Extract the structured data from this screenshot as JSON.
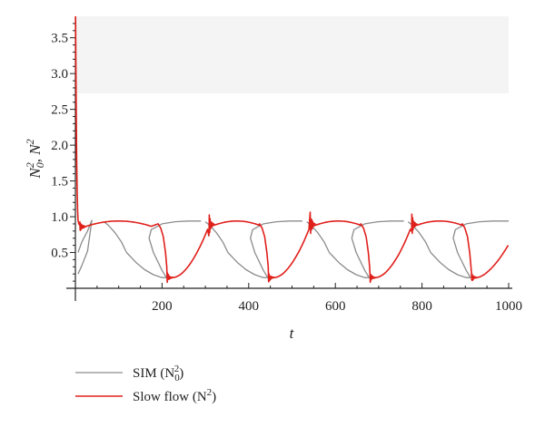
{
  "chart_data": {
    "type": "line",
    "xlabel": "t",
    "ylabel_parts": [
      "N",
      "0",
      "2",
      ", N",
      "2"
    ],
    "xlim": [
      0,
      1000
    ],
    "ylim": [
      0,
      3.8
    ],
    "xticks": [
      200,
      400,
      600,
      800,
      1000
    ],
    "yticks": [
      0.5,
      1.0,
      1.5,
      2.0,
      2.5,
      3.0,
      3.5
    ],
    "ytick_labels": [
      "0.5",
      "1.0",
      "1.5",
      "2.0",
      "2.5",
      "3.0",
      "3.5"
    ],
    "xtick_labels": [
      "200",
      "400",
      "600",
      "800",
      "1000"
    ],
    "grid": false,
    "legend_position": "bottom-left",
    "series": [
      {
        "name_parts": [
          "SIM (N",
          "0",
          "2",
          ")"
        ],
        "color": "#8c8c8c",
        "kind": "slow-manifold-branches",
        "branches": [
          {
            "x": [
              6,
              15,
              28,
              38,
              38,
              28,
              15,
              6
            ],
            "y": [
              0.2,
              0.32,
              0.52,
              0.95,
              0.95,
              0.8,
              0.65,
              0.5
            ]
          },
          {
            "x": [
              118,
              140,
              160,
              180,
              200,
              210,
              200,
              180,
              170,
              175,
              200,
              230,
              260,
              290
            ],
            "y": [
              0.5,
              0.36,
              0.26,
              0.19,
              0.15,
              0.15,
              0.25,
              0.5,
              0.7,
              0.82,
              0.9,
              0.93,
              0.94,
              0.94
            ]
          },
          {
            "x": [
              352,
              374,
              394,
              414,
              434,
              444,
              434,
              414,
              404,
              409,
              434,
              464,
              494,
              524
            ],
            "y": [
              0.5,
              0.36,
              0.26,
              0.19,
              0.15,
              0.15,
              0.25,
              0.5,
              0.7,
              0.82,
              0.9,
              0.93,
              0.94,
              0.94
            ]
          },
          {
            "x": [
              586,
              608,
              628,
              648,
              668,
              678,
              668,
              648,
              638,
              643,
              668,
              698,
              728,
              758
            ],
            "y": [
              0.5,
              0.36,
              0.26,
              0.19,
              0.15,
              0.15,
              0.25,
              0.5,
              0.7,
              0.82,
              0.9,
              0.93,
              0.94,
              0.94
            ]
          },
          {
            "x": [
              820,
              842,
              862,
              882,
              902,
              912,
              902,
              882,
              872,
              877,
              902,
              932,
              962,
              992,
              1000
            ],
            "y": [
              0.5,
              0.36,
              0.26,
              0.19,
              0.15,
              0.15,
              0.25,
              0.5,
              0.7,
              0.82,
              0.9,
              0.93,
              0.94,
              0.94,
              0.94
            ]
          },
          {
            "x": [
              352,
              340,
              325,
              310,
              300
            ],
            "y": [
              0.5,
              0.65,
              0.78,
              0.88,
              0.93
            ]
          },
          {
            "x": [
              586,
              574,
              559,
              544,
              534
            ],
            "y": [
              0.5,
              0.65,
              0.78,
              0.88,
              0.93
            ]
          },
          {
            "x": [
              820,
              808,
              793,
              778,
              768
            ],
            "y": [
              0.5,
              0.65,
              0.78,
              0.88,
              0.93
            ]
          },
          {
            "x": [
              118,
              106,
              91,
              76,
              66
            ],
            "y": [
              0.5,
              0.65,
              0.78,
              0.88,
              0.93
            ]
          }
        ]
      },
      {
        "name_parts": [
          "Slow flow (N",
          "2",
          ")"
        ],
        "color": "#e0201b",
        "kind": "relaxation-oscillation",
        "spike": {
          "x": [
            0.5,
            1,
            2,
            3,
            4,
            5,
            6,
            8,
            10
          ],
          "y": [
            3.8,
            3.2,
            2.4,
            1.8,
            1.4,
            1.1,
            0.95,
            0.9,
            0.88
          ]
        },
        "period": 234,
        "first_jump_t": 200,
        "min_value": 0.12,
        "max_value": 0.94,
        "end_value": 0.61
      }
    ]
  },
  "legend": {
    "entries": [
      {
        "color": "#8c8c8c",
        "label_parts": [
          "SIM (N",
          "0",
          "2",
          ")"
        ]
      },
      {
        "color": "#e0201b",
        "label_parts": [
          "Slow flow (N",
          "2",
          ")"
        ]
      }
    ]
  }
}
